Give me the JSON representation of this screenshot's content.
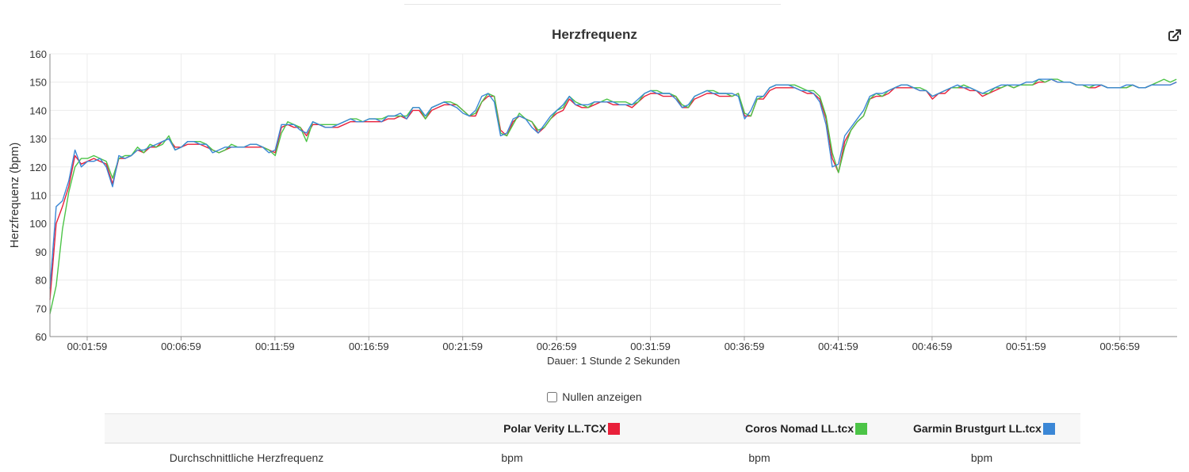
{
  "chart_data": {
    "type": "line",
    "title": "Herzfrequenz",
    "ylabel": "Herzfrequenz (bpm)",
    "xlabel": "Dauer: 1 Stunde 2 Sekunden",
    "ylim": [
      60,
      160
    ],
    "yticks": [
      60,
      70,
      80,
      90,
      100,
      110,
      120,
      130,
      140,
      150,
      160
    ],
    "xlim_seconds": [
      0,
      3602
    ],
    "xtick_labels": [
      "00:01:59",
      "00:06:59",
      "00:11:59",
      "00:16:59",
      "00:21:59",
      "00:26:59",
      "00:31:59",
      "00:36:59",
      "00:41:59",
      "00:46:59",
      "00:51:59",
      "00:56:59"
    ],
    "xtick_seconds": [
      119,
      419,
      719,
      1019,
      1319,
      1619,
      1919,
      2219,
      2519,
      2819,
      3119,
      3419
    ],
    "grid": true,
    "x": [
      0,
      20,
      40,
      60,
      80,
      100,
      120,
      140,
      160,
      180,
      200,
      220,
      240,
      260,
      280,
      300,
      320,
      340,
      360,
      380,
      400,
      420,
      440,
      460,
      480,
      500,
      520,
      540,
      560,
      580,
      600,
      620,
      640,
      660,
      680,
      700,
      720,
      740,
      760,
      780,
      800,
      820,
      840,
      860,
      880,
      900,
      920,
      940,
      960,
      980,
      1000,
      1020,
      1040,
      1060,
      1080,
      1100,
      1120,
      1140,
      1160,
      1180,
      1200,
      1220,
      1240,
      1260,
      1280,
      1300,
      1320,
      1340,
      1360,
      1380,
      1400,
      1420,
      1440,
      1460,
      1480,
      1500,
      1520,
      1540,
      1560,
      1580,
      1600,
      1620,
      1640,
      1660,
      1680,
      1700,
      1720,
      1740,
      1760,
      1780,
      1800,
      1820,
      1840,
      1860,
      1880,
      1900,
      1920,
      1940,
      1960,
      1980,
      2000,
      2020,
      2040,
      2060,
      2080,
      2100,
      2120,
      2140,
      2160,
      2180,
      2200,
      2220,
      2240,
      2260,
      2280,
      2300,
      2320,
      2340,
      2360,
      2380,
      2400,
      2420,
      2440,
      2460,
      2480,
      2500,
      2520,
      2540,
      2560,
      2580,
      2600,
      2620,
      2640,
      2660,
      2680,
      2700,
      2720,
      2740,
      2760,
      2780,
      2800,
      2820,
      2840,
      2860,
      2880,
      2900,
      2920,
      2940,
      2960,
      2980,
      3000,
      3020,
      3040,
      3060,
      3080,
      3100,
      3120,
      3140,
      3160,
      3180,
      3200,
      3220,
      3240,
      3260,
      3280,
      3300,
      3320,
      3340,
      3360,
      3380,
      3400,
      3420,
      3440,
      3460,
      3480,
      3500,
      3520,
      3540,
      3560,
      3580,
      3600
    ],
    "series": [
      {
        "name": "Polar Verity LL.TCX",
        "color": "#e8203a",
        "values": [
          73,
          100,
          106,
          113,
          124,
          121,
          122,
          123,
          122,
          121,
          114,
          123,
          123,
          124,
          126,
          125,
          127,
          127,
          129,
          130,
          127,
          127,
          128,
          128,
          128,
          127,
          126,
          125,
          126,
          127,
          127,
          127,
          127,
          127,
          127,
          126,
          125,
          134,
          135,
          134,
          134,
          131,
          135,
          135,
          134,
          134,
          134,
          135,
          136,
          136,
          136,
          136,
          136,
          136,
          137,
          137,
          138,
          137,
          140,
          140,
          137,
          140,
          141,
          142,
          142,
          142,
          140,
          138,
          138,
          143,
          145,
          145,
          133,
          131,
          136,
          138,
          137,
          136,
          132,
          134,
          137,
          139,
          140,
          144,
          142,
          141,
          141,
          142,
          143,
          143,
          142,
          142,
          142,
          141,
          143,
          145,
          146,
          146,
          145,
          145,
          145,
          141,
          141,
          144,
          145,
          146,
          146,
          145,
          145,
          145,
          146,
          138,
          138,
          144,
          144,
          147,
          148,
          148,
          148,
          148,
          147,
          146,
          146,
          144,
          137,
          123,
          118,
          129,
          133,
          136,
          138,
          144,
          145,
          145,
          146,
          148,
          148,
          148,
          148,
          147,
          147,
          144,
          146,
          146,
          148,
          148,
          148,
          147,
          147,
          145,
          146,
          147,
          148,
          149,
          148,
          149,
          149,
          149,
          150,
          150,
          151,
          150,
          150,
          150,
          149,
          149,
          148,
          148,
          149,
          148,
          148,
          148,
          148,
          149,
          148,
          148,
          149,
          149,
          149,
          149,
          150
        ]
      },
      {
        "name": "Coros Nomad LL.tcx",
        "color": "#4cc447",
        "values": [
          68,
          78,
          98,
          111,
          120,
          123,
          123,
          124,
          123,
          122,
          116,
          123,
          124,
          124,
          127,
          125,
          128,
          127,
          128,
          131,
          126,
          127,
          129,
          129,
          129,
          128,
          126,
          125,
          126,
          128,
          127,
          127,
          128,
          128,
          127,
          126,
          124,
          132,
          136,
          135,
          134,
          129,
          136,
          135,
          135,
          135,
          135,
          136,
          137,
          137,
          136,
          137,
          137,
          137,
          138,
          138,
          138,
          138,
          141,
          141,
          137,
          141,
          142,
          143,
          143,
          142,
          140,
          138,
          139,
          143,
          146,
          145,
          132,
          131,
          135,
          139,
          137,
          136,
          133,
          134,
          137,
          140,
          141,
          145,
          143,
          142,
          141,
          143,
          143,
          144,
          143,
          143,
          143,
          142,
          143,
          146,
          147,
          147,
          146,
          146,
          145,
          142,
          141,
          145,
          146,
          147,
          147,
          146,
          146,
          145,
          146,
          139,
          138,
          144,
          145,
          148,
          149,
          149,
          149,
          149,
          148,
          147,
          147,
          145,
          138,
          125,
          118,
          127,
          133,
          136,
          138,
          144,
          146,
          145,
          147,
          148,
          149,
          149,
          148,
          148,
          147,
          145,
          146,
          147,
          148,
          148,
          149,
          148,
          147,
          146,
          146,
          148,
          148,
          149,
          148,
          149,
          149,
          149,
          151,
          150,
          151,
          151,
          150,
          150,
          149,
          149,
          148,
          149,
          149,
          148,
          148,
          148,
          148,
          149,
          148,
          148,
          149,
          150,
          151,
          150,
          151
        ]
      },
      {
        "name": "Garmin Brustgurt LL.tcx",
        "color": "#3b87d6",
        "values": [
          77,
          106,
          108,
          115,
          126,
          120,
          122,
          122,
          123,
          120,
          113,
          124,
          123,
          124,
          126,
          126,
          127,
          128,
          129,
          130,
          126,
          127,
          129,
          129,
          128,
          128,
          125,
          126,
          127,
          127,
          127,
          127,
          128,
          128,
          127,
          125,
          126,
          135,
          135,
          135,
          133,
          132,
          136,
          135,
          134,
          134,
          135,
          136,
          137,
          136,
          136,
          137,
          137,
          136,
          138,
          138,
          139,
          137,
          141,
          141,
          138,
          141,
          142,
          143,
          142,
          141,
          139,
          138,
          140,
          145,
          146,
          143,
          131,
          132,
          137,
          138,
          137,
          134,
          132,
          135,
          138,
          140,
          142,
          145,
          142,
          142,
          142,
          143,
          143,
          143,
          143,
          142,
          142,
          142,
          144,
          146,
          147,
          146,
          146,
          146,
          144,
          141,
          142,
          145,
          146,
          147,
          146,
          146,
          146,
          146,
          145,
          137,
          140,
          145,
          145,
          148,
          149,
          149,
          149,
          148,
          147,
          147,
          146,
          143,
          135,
          120,
          121,
          131,
          134,
          137,
          140,
          145,
          146,
          146,
          147,
          148,
          149,
          149,
          148,
          147,
          147,
          145,
          146,
          147,
          148,
          149,
          148,
          148,
          147,
          146,
          147,
          148,
          149,
          149,
          149,
          149,
          150,
          150,
          151,
          151,
          151,
          150,
          150,
          150,
          149,
          149,
          149,
          149,
          149,
          148,
          148,
          148,
          149,
          149,
          148,
          148,
          149,
          149,
          149,
          149,
          150
        ]
      }
    ]
  },
  "controls": {
    "show_zeros_label": "Nullen anzeigen",
    "show_zeros_checked": false,
    "export_icon": "external-edit-icon"
  },
  "stats_table": {
    "headers": [
      "",
      "Polar Verity LL.TCX",
      "Coros Nomad LL.tcx",
      "Garmin Brustgurt LL.tcx"
    ],
    "swatch_colors": [
      "#e8203a",
      "#4cc447",
      "#3b87d6"
    ],
    "rows": [
      {
        "label": "Durchschnittliche Herzfrequenz",
        "values": [
          "bpm",
          "bpm",
          "bpm"
        ]
      }
    ],
    "header_bg": "#f7f7f7"
  }
}
